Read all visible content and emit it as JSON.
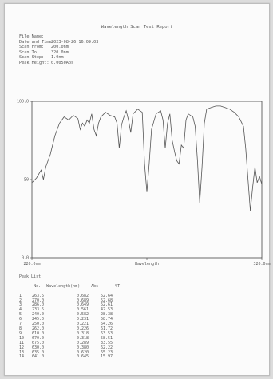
{
  "report": {
    "title": "Wavelength Scan Test Report",
    "meta": [
      {
        "label": "File Name:",
        "value": ""
      },
      {
        "label": "Date and Time:",
        "value": "2023-08-26 16:09:03"
      },
      {
        "label": "Scan From:",
        "value": "200.0nm"
      },
      {
        "label": "Scan To:",
        "value": "320.0nm"
      },
      {
        "label": "Scan Step:",
        "value": "1.0nm"
      },
      {
        "label": "Peak Height:",
        "value": "0.0050Abs"
      }
    ]
  },
  "chart_data": {
    "type": "line",
    "xlabel": "Wavelength",
    "ylim": [
      0,
      100
    ],
    "xlim": [
      220,
      320
    ],
    "ticks_y": [
      {
        "value": 100,
        "label": "100.0"
      },
      {
        "value": 50,
        "label": "50"
      },
      {
        "value": 0,
        "label": "0.0"
      }
    ],
    "ticks_x": [
      {
        "value": 220,
        "label": "220.0nm"
      },
      {
        "value": 270,
        "label": "Wavelength"
      },
      {
        "value": 320,
        "label": "320.0nm"
      }
    ],
    "series": [
      {
        "color": "#555555",
        "points": [
          [
            220,
            48
          ],
          [
            222,
            51
          ],
          [
            224,
            56
          ],
          [
            225,
            50
          ],
          [
            226,
            58
          ],
          [
            228,
            66
          ],
          [
            230,
            78
          ],
          [
            232,
            86
          ],
          [
            234,
            90
          ],
          [
            236,
            88
          ],
          [
            238,
            91
          ],
          [
            240,
            89
          ],
          [
            241,
            82
          ],
          [
            242,
            86
          ],
          [
            243,
            84
          ],
          [
            244,
            88
          ],
          [
            245,
            86
          ],
          [
            246,
            92
          ],
          [
            247,
            82
          ],
          [
            248,
            78
          ],
          [
            249,
            86
          ],
          [
            250,
            90
          ],
          [
            252,
            93
          ],
          [
            254,
            91
          ],
          [
            256,
            90
          ],
          [
            257,
            86
          ],
          [
            258,
            70
          ],
          [
            259,
            85
          ],
          [
            260,
            90
          ],
          [
            261,
            94
          ],
          [
            262,
            88
          ],
          [
            263,
            80
          ],
          [
            264,
            92
          ],
          [
            266,
            95
          ],
          [
            268,
            93
          ],
          [
            269,
            60
          ],
          [
            270,
            42
          ],
          [
            271,
            60
          ],
          [
            272,
            82
          ],
          [
            274,
            92
          ],
          [
            276,
            94
          ],
          [
            277,
            88
          ],
          [
            278,
            70
          ],
          [
            279,
            86
          ],
          [
            280,
            92
          ],
          [
            281,
            75
          ],
          [
            282,
            68
          ],
          [
            283,
            62
          ],
          [
            284,
            60
          ],
          [
            285,
            72
          ],
          [
            286,
            70
          ],
          [
            287,
            88
          ],
          [
            288,
            92
          ],
          [
            290,
            90
          ],
          [
            291,
            84
          ],
          [
            292,
            62
          ],
          [
            293,
            35
          ],
          [
            294,
            58
          ],
          [
            295,
            86
          ],
          [
            296,
            95
          ],
          [
            298,
            96
          ],
          [
            300,
            97
          ],
          [
            302,
            97
          ],
          [
            304,
            96
          ],
          [
            306,
            95
          ],
          [
            308,
            93
          ],
          [
            310,
            90
          ],
          [
            312,
            84
          ],
          [
            313,
            70
          ],
          [
            314,
            50
          ],
          [
            315,
            30
          ],
          [
            316,
            45
          ],
          [
            317,
            58
          ],
          [
            318,
            48
          ],
          [
            319,
            52
          ],
          [
            320,
            47
          ]
        ]
      }
    ]
  },
  "peaks": {
    "title": "Peak List:",
    "headers": [
      "No.",
      "Wavelength(nm)",
      "Abs",
      "%T"
    ],
    "rows": [
      [
        "1",
        "263.5",
        "0.682",
        "52.64"
      ],
      [
        "2",
        "270.0",
        "0.689",
        "52.68"
      ],
      [
        "3",
        "286.0",
        "0.649",
        "52.61"
      ],
      [
        "4",
        "233.5",
        "0.561",
        "42.53"
      ],
      [
        "5",
        "240.0",
        "0.582",
        "28.38"
      ],
      [
        "6",
        "245.0",
        "0.231",
        "58.74"
      ],
      [
        "7",
        "250.0",
        "0.221",
        "54.26"
      ],
      [
        "8",
        "262.0",
        "0.226",
        "61.72"
      ],
      [
        "9",
        "610.0",
        "0.318",
        "63.53"
      ],
      [
        "10",
        "670.0",
        "0.318",
        "58.51"
      ],
      [
        "11",
        "675.0",
        "0.289",
        "33.55"
      ],
      [
        "12",
        "630.0",
        "0.380",
        "62.22"
      ],
      [
        "13",
        "635.0",
        "0.620",
        "65.23"
      ],
      [
        "14",
        "641.0",
        "0.645",
        "15.97"
      ]
    ]
  }
}
